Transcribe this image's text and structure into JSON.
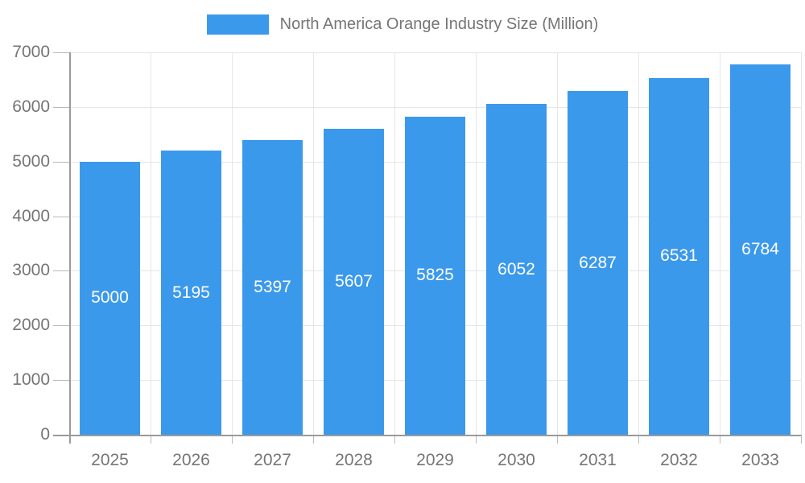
{
  "legend": {
    "label": "North America Orange Industry Size (Million)"
  },
  "chart_data": {
    "type": "bar",
    "title": "North America Orange Industry Size (Million)",
    "categories": [
      "2025",
      "2026",
      "2027",
      "2028",
      "2029",
      "2030",
      "2031",
      "2032",
      "2033"
    ],
    "values": [
      5000,
      5195,
      5397,
      5607,
      5825,
      6052,
      6287,
      6531,
      6784
    ],
    "series": [
      {
        "name": "North America Orange Industry Size (Million)",
        "values": [
          5000,
          5195,
          5397,
          5607,
          5825,
          6052,
          6287,
          6531,
          6784
        ]
      }
    ],
    "xlabel": "",
    "ylabel": "",
    "ylim": [
      0,
      7000
    ],
    "ytick_step": 1000,
    "ytick_labels": [
      "0",
      "1000",
      "2000",
      "3000",
      "4000",
      "5000",
      "6000",
      "7000"
    ],
    "grid": true,
    "legend_position": "top",
    "value_labels": "centered-inside-bars",
    "colors": {
      "bar": "#3B99EC",
      "grid": "#e6e6e6",
      "axis": "#9a9a9a",
      "tick": "#b9b9b9",
      "axis_text": "#757575",
      "value_label_text": "#ffffff",
      "background": "#ffffff"
    }
  }
}
